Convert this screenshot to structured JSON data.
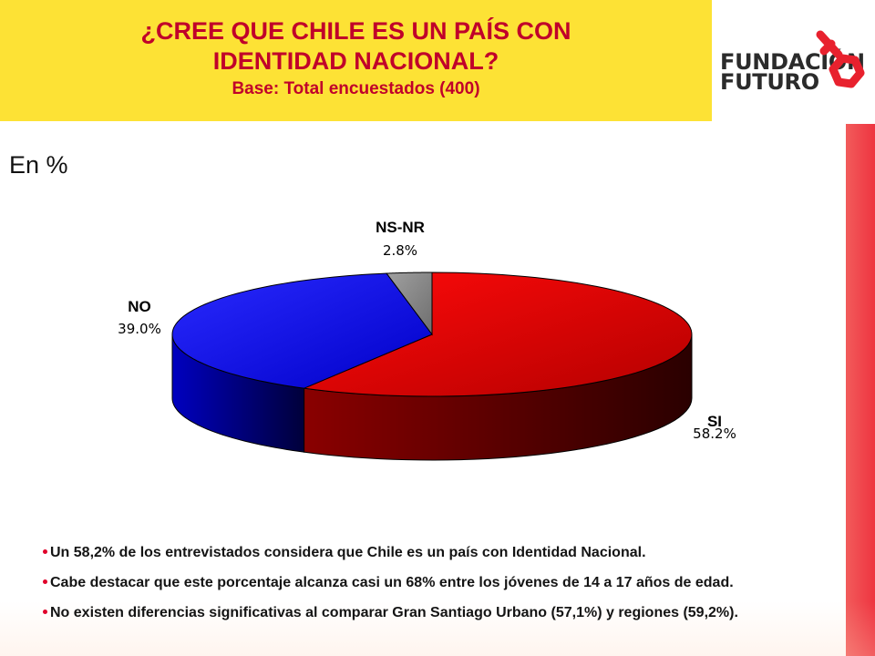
{
  "header": {
    "title_line1": "¿CREE QUE CHILE ES UN PAÍS CON",
    "title_line2": "IDENTIDAD NACIONAL?",
    "subtitle": "Base: Total encuestados (400)"
  },
  "logo": {
    "line1": "FUNDACIÓN",
    "line2": "FUTURO",
    "icon": "key-icon",
    "accent_color": "#e8212e"
  },
  "unit_label": "En %",
  "chart_data": {
    "type": "pie",
    "style": "3d",
    "labels": [
      "SI",
      "NO",
      "NS-NR"
    ],
    "values": [
      58.2,
      39.0,
      2.8
    ],
    "value_labels": [
      "58.2%",
      "39.0%",
      "2.8%"
    ],
    "colors": [
      "#e40000",
      "#1010ee",
      "#8c8c8c"
    ],
    "start": "12 o'clock",
    "direction": "clockwise"
  },
  "bullets": [
    "Un 58,2% de los entrevistados considera que Chile es un país con Identidad Nacional.",
    "Cabe destacar que este porcentaje alcanza casi un 68% entre los jóvenes de 14 a 17 años de edad.",
    "No existen diferencias significativas al comparar Gran Santiago Urbano (57,1%) y regiones (59,2%)."
  ],
  "colors": {
    "title_bg": "#fde235",
    "title_text": "#c0002a",
    "side_bar": "#ee3440"
  }
}
